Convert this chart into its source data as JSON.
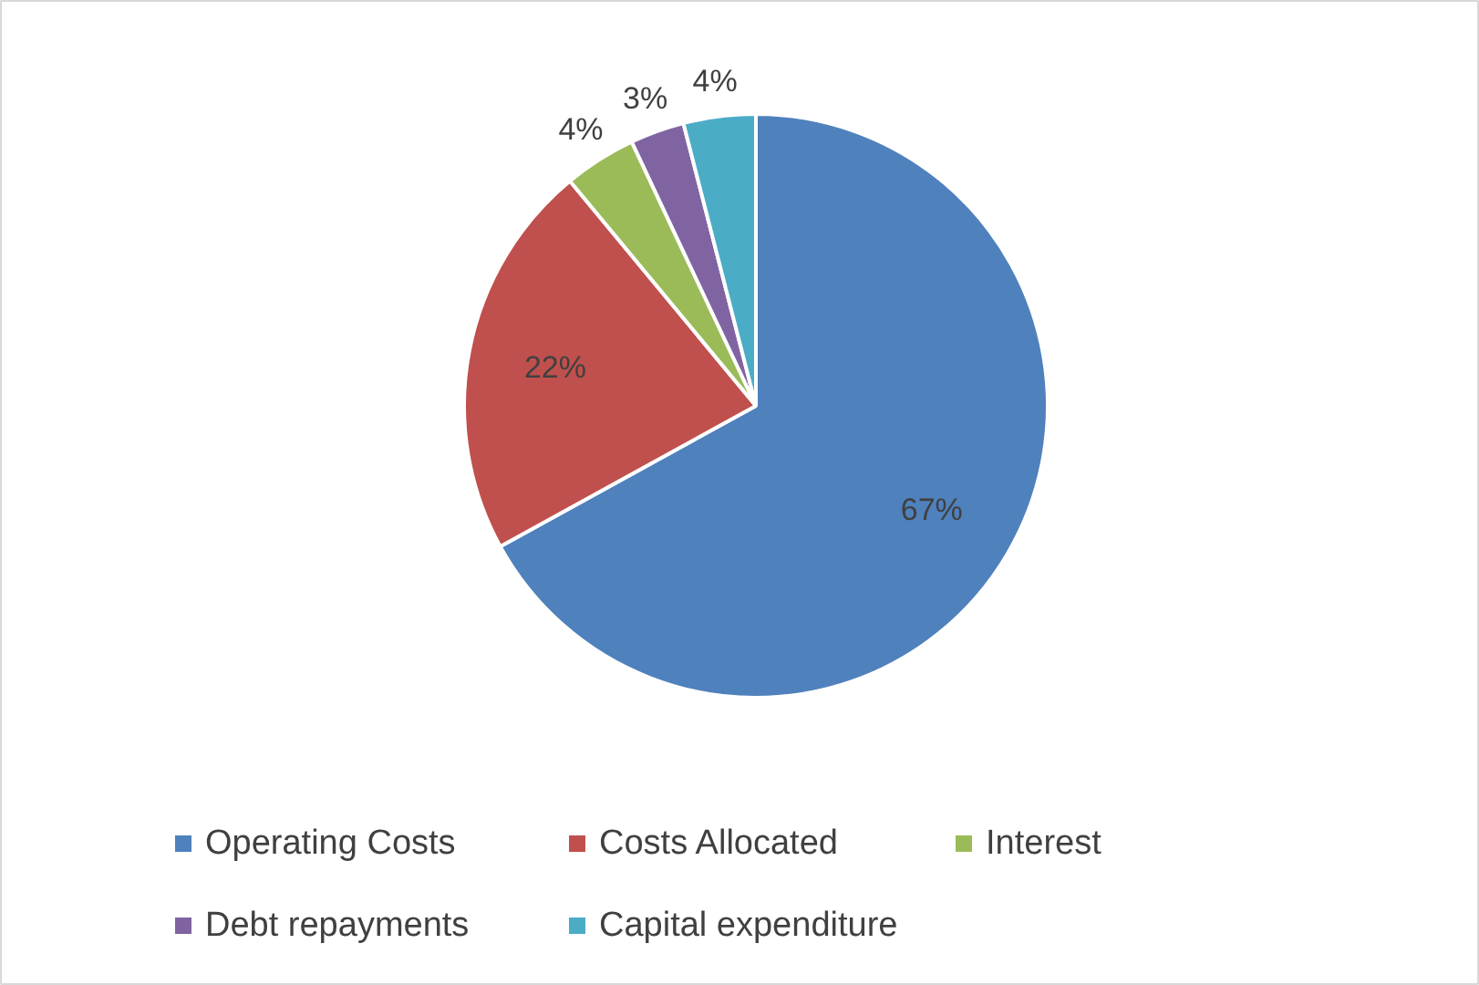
{
  "chart_data": {
    "type": "pie",
    "categories": [
      "Operating Costs",
      "Costs Allocated",
      "Interest",
      "Debt repayments",
      "Capital expenditure"
    ],
    "values": [
      67,
      22,
      4,
      3,
      4
    ],
    "colors": [
      "#4f81bd",
      "#c0504d",
      "#9bbb59",
      "#8064a2",
      "#4bacc6"
    ],
    "value_labels": [
      "67%",
      "22%",
      "4%",
      "3%",
      "4%"
    ],
    "legend": "bottom"
  }
}
